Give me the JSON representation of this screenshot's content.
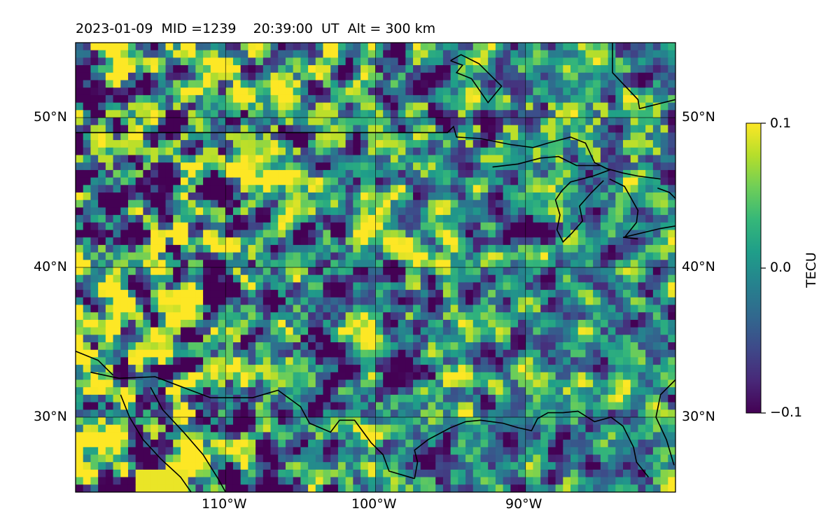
{
  "title": "2023-01-09  MID =1239    20:39:00  UT  Alt = 300 km",
  "map": {
    "lon_range": [
      -120,
      -80
    ],
    "lat_range": [
      25,
      55
    ],
    "lon_ticks": [
      {
        "value": -110,
        "label": "110°W"
      },
      {
        "value": -100,
        "label": "100°W"
      },
      {
        "value": -90,
        "label": "90°W"
      }
    ],
    "lat_ticks": [
      {
        "value": 50,
        "label": "50°N"
      },
      {
        "value": 40,
        "label": "40°N"
      },
      {
        "value": 30,
        "label": "30°N"
      }
    ],
    "grid": true,
    "coastline_color": "#000000",
    "field": "differential TEC perturbation (viridis)"
  },
  "colorbar": {
    "label": "TECU",
    "min": -0.1,
    "max": 0.1,
    "ticks": [
      {
        "value": 0.1,
        "label": "0.1"
      },
      {
        "value": 0.0,
        "label": "0.0"
      },
      {
        "value": -0.1,
        "label": "−0.1"
      }
    ],
    "colormap": [
      "#440154",
      "#482878",
      "#3e4989",
      "#31688e",
      "#26828e",
      "#1f9e89",
      "#35b779",
      "#6ece58",
      "#b5de2b",
      "#fde725"
    ]
  }
}
